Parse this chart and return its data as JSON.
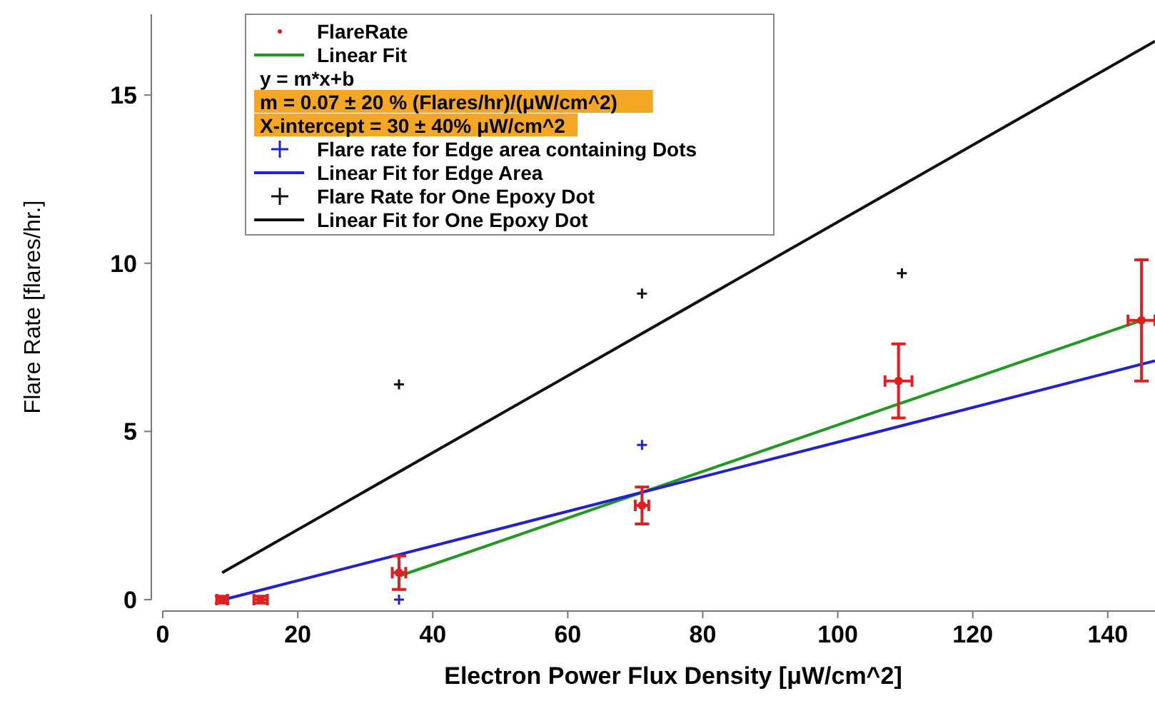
{
  "chart_data": {
    "type": "scatter",
    "xlabel": "Electron Power Flux Density [μW/cm^2]",
    "ylabel": "Flare Rate [flares/hr.]",
    "xlim": [
      0,
      147
    ],
    "ylim": [
      0,
      17.4
    ],
    "xticks": [
      0,
      20,
      40,
      60,
      80,
      100,
      120,
      140
    ],
    "yticks": [
      0,
      5,
      10,
      15
    ],
    "grid": false,
    "legend": "top left",
    "annotations": [
      "y = m*x+b",
      "m = 0.07 ± 20 % (Flares/hr)/(μW/cm^2)",
      "X-intercept = 30 ± 40% μW/cm^2"
    ],
    "series": [
      {
        "name": "FlareRate",
        "marker": "circle",
        "color": "#e02020",
        "x": [
          8.8,
          14.5,
          35,
          71,
          109,
          145
        ],
        "values": [
          0,
          0,
          0.8,
          2.8,
          6.5,
          8.3
        ],
        "errors": [
          0.1,
          0.1,
          0.5,
          0.55,
          1.1,
          1.8
        ],
        "xerrors": [
          0.8,
          1,
          1,
          1,
          2,
          2
        ]
      },
      {
        "name": "Linear Fit",
        "type": "line",
        "color": "#229922",
        "x": [
          35,
          145
        ],
        "values": [
          0.7,
          8.3
        ]
      },
      {
        "name": "Flare rate for Edge area containing Dots",
        "marker": "cross",
        "color": "#2222cc",
        "x": [
          35,
          71
        ],
        "values": [
          0,
          4.6
        ]
      },
      {
        "name": "Linear Fit for Edge Area",
        "type": "line",
        "color": "#2222cc",
        "x": [
          9,
          147
        ],
        "values": [
          0,
          7.1
        ]
      },
      {
        "name": "Flare Rate for One Epoxy Dot",
        "marker": "cross",
        "color": "#111111",
        "x": [
          35,
          71,
          109.5
        ],
        "values": [
          6.4,
          9.1,
          9.7
        ]
      },
      {
        "name": "Linear Fit for One Epoxy Dot",
        "type": "line",
        "color": "#111111",
        "x": [
          8.8,
          147
        ],
        "values": [
          0.8,
          16.6
        ]
      }
    ]
  }
}
